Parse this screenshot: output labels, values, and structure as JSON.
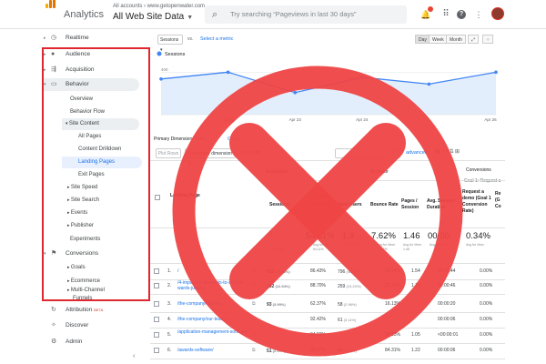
{
  "header": {
    "app_name": "Analytics",
    "accounts_line": "All accounts › www.getopenwater.com",
    "property": "All Web Site Data",
    "search_placeholder": "Try searching “Pageviews in last 30 days”",
    "icons": [
      "search-icon",
      "notifications-icon",
      "apps-icon",
      "help-icon",
      "more-icon",
      "avatar"
    ]
  },
  "sidebar": {
    "realtime": "Realtime",
    "audience": "Audience",
    "acquisition": "Acquisition",
    "behavior": "Behavior",
    "behavior_items": [
      "Overview",
      "Behavior Flow"
    ],
    "site_content": "Site Content",
    "site_content_items": [
      "All Pages",
      "Content Drilldown",
      "Landing Pages",
      "Exit Pages"
    ],
    "behavior_more": [
      "Site Speed",
      "Site Search",
      "Events",
      "Publisher"
    ],
    "experiments": "Experiments",
    "conversions": "Conversions",
    "conversions_items": [
      "Goals",
      "Ecommerce"
    ],
    "multi_channel": "Multi-Channel",
    "multi_channel_2": "Funnels",
    "attribution": "Attribution",
    "attribution_badge": "BETA",
    "discover": "Discover",
    "admin": "Admin",
    "selected": "Landing Pages"
  },
  "toolbar": {
    "metric_select": "Sessions",
    "vs": "vs.",
    "select_metric": "Select a metric",
    "periods": [
      "Day",
      "Week",
      "Month"
    ],
    "active_period": "Day"
  },
  "chart_data": {
    "type": "line",
    "legend": "Sessions",
    "x": [
      "Apr 21",
      "Apr 22",
      "Apr 23",
      "Apr 24",
      "Apr 25",
      "Apr 26"
    ],
    "x_ticks": [
      "Apr 22",
      "Apr 23",
      "Apr 24",
      "Apr 26"
    ],
    "series": [
      {
        "name": "Sessions",
        "values": [
          360,
          400,
          280,
          370,
          330,
          400
        ]
      }
    ],
    "y_ticks": [
      400,
      200
    ],
    "ylim": [
      150,
      450
    ],
    "color": "#4285f4"
  },
  "dimension_bar": {
    "primary_label": "Primary Dimension:",
    "landing_link": "Lan",
    "other_link": "Other",
    "plot_rows": "Plot Rows",
    "secondary_dimension": "Secondary dimension",
    "sort_type": "Sort Type:",
    "advanced": "advanced"
  },
  "table": {
    "group_acquisition": "Acquisition",
    "group_behavior": "Behavior",
    "group_conversions": "Conversions",
    "goal_selector": "Goal 1: Request a",
    "col_landing": "Landing Page",
    "col_sessions": "Sessions",
    "col_new_sessions": "% New Sessions",
    "col_new_users": "New Users",
    "col_bounce": "Bounce Rate",
    "col_pages": "Pages / Session",
    "col_duration": "Avg. Session Duration",
    "col_conv_rate": "Request a demo (Goal 1 Conversion Rate)",
    "col_next": "Re (G Co",
    "totals": {
      "sessions_note": "% of Total",
      "new_sessions": "54.11%",
      "new_sessions_note": "Avg for View: 54.11%",
      "new_users": "1,9",
      "new_users_note": "% of Total",
      "bounce": "7.62%",
      "bounce_note": "Avg for View: 77.62%",
      "pages": "1.46",
      "pages_note": "Avg for View: 1.46",
      "duration": "00:00:",
      "duration_note": "Avg for View",
      "conv_rate": "0.34%",
      "conv_rate_note": "Avg for View"
    },
    "rows": [
      {
        "n": "1.",
        "page": "/",
        "sessions": "921",
        "sessions_pct": "(39.56%)",
        "new_pct": "86.43%",
        "users": "796",
        "users_pct": "(40.63%)",
        "bounce": "78.94%",
        "pages": "1.54",
        "duration": "00:00:44",
        "conv": "0.00%"
      },
      {
        "n": "2.",
        "page": "/4-important-elements-to-send-a-wards-judges/",
        "sessions": "292",
        "sessions_pct": "(12.54%)",
        "new_pct": "88.70%",
        "users": "259",
        "users_pct": "(13.22%)",
        "bounce": "92.12%",
        "pages": "1.10",
        "duration": "00:00:46",
        "conv": "0.00%"
      },
      {
        "n": "3.",
        "page": "/the-company/openwa",
        "sessions": "93",
        "sessions_pct": "(3.99%)",
        "new_pct": "62.37%",
        "users": "58",
        "users_pct": "(2.96%)",
        "bounce": "16.13%",
        "pages": "",
        "duration": "00:00:20",
        "conv": "0.00%"
      },
      {
        "n": "4.",
        "page": "/the-company/our-team/",
        "sessions": "",
        "sessions_pct": "",
        "new_pct": "92.42%",
        "users": "61",
        "users_pct": "(3.11%)",
        "bounce": "",
        "pages": "",
        "duration": "00:00:06",
        "conv": "0.00%"
      },
      {
        "n": "5.",
        "page": "/application-management-software/",
        "sessions": "",
        "sessions_pct": "",
        "new_pct": "94.83%",
        "users": "",
        "users_pct": "",
        "bounce": "96.55%",
        "pages": "1.05",
        "duration": "<00:00:01",
        "conv": "0.00%"
      },
      {
        "n": "6.",
        "page": "/awards-software/",
        "sessions": "51",
        "sessions_pct": "(2.19%)",
        "new_pct": "86.27%",
        "users": "44",
        "users_pct": "(2.25%)",
        "bounce": "84.31%",
        "pages": "1.22",
        "duration": "00:00:06",
        "conv": "0.00%"
      }
    ]
  }
}
